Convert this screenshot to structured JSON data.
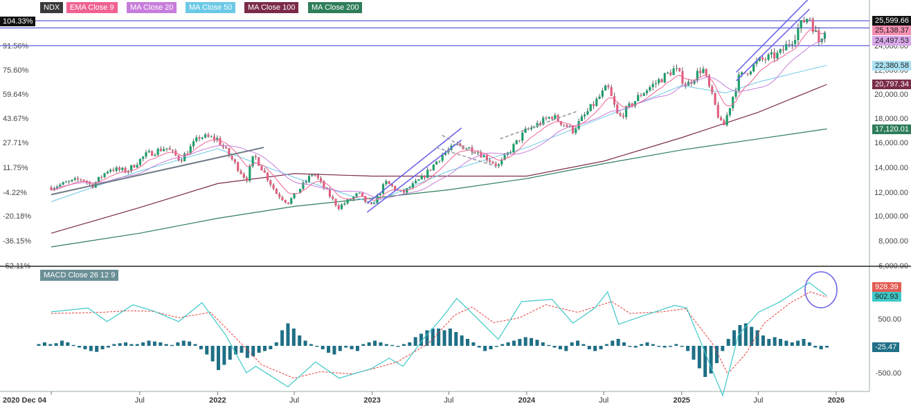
{
  "legend": {
    "ticker": "NDX",
    "ema9": "EMA Close 9",
    "ma20": "MA Close 20",
    "ma50": "MA Close 50",
    "ma100": "MA Close 100",
    "ma200": "MA Close 200",
    "macd": "MACD Close 26 12 9"
  },
  "colors": {
    "up": "#1e9e6a",
    "down": "#e0607e",
    "ema9": "#f06292",
    "ma20": "#c77ddb",
    "ma50": "#6cc9e6",
    "ma100": "#7b2a4a",
    "ma200": "#2e7d5b",
    "macd_line": "#3ec8c8",
    "signal_line": "#e53935",
    "hist": "#1f6f86",
    "trend": "#6c63e8",
    "grid_line": "#5b5bd6"
  },
  "chart_data": [
    {
      "type": "candlestick",
      "title": "NDX",
      "y_right_ticks": [
        "25,599.66",
        "24,000.00",
        "22,000.00",
        "20,000.00",
        "18,000.00",
        "16,000.00",
        "14,000.00",
        "12,000.00",
        "10,000.00",
        "8,000.00",
        "6,000.00"
      ],
      "y_left_pct_ticks": [
        "104.33%",
        "91.56%",
        "75.60%",
        "59.64%",
        "43.67%",
        "27.71%",
        "11.75%",
        "-4.22%",
        "-20.18%",
        "-36.15%",
        "-52.11%"
      ],
      "x_ticks": [
        "2020 Dec 04",
        "Jul",
        "2022",
        "Jul",
        "2023",
        "Jul",
        "2024",
        "Jul",
        "2025",
        "Jul",
        "2026"
      ],
      "price_scale": [
        [
          25599.66,
          30
        ],
        [
          24000,
          66
        ],
        [
          22000,
          101
        ],
        [
          20000,
          136
        ],
        [
          18000,
          171
        ],
        [
          16000,
          206
        ],
        [
          14000,
          242
        ],
        [
          12000,
          278
        ],
        [
          10000,
          312
        ],
        [
          8000,
          348
        ],
        [
          6000,
          384
        ]
      ],
      "x_dates": [
        "2020-12-04",
        "2021-07-01",
        "2022-01-01",
        "2022-07-01",
        "2023-01-01",
        "2023-07-01",
        "2024-01-01",
        "2024-07-01",
        "2025-01-01",
        "2025-07-01",
        "2026-01-01"
      ],
      "price_path": [
        [
          "2020-12-04",
          12400
        ],
        [
          "2021-02-15",
          13100
        ],
        [
          "2021-03-10",
          12500
        ],
        [
          "2021-04-20",
          13900
        ],
        [
          "2021-06-01",
          13700
        ],
        [
          "2021-07-15",
          15000
        ],
        [
          "2021-09-01",
          15600
        ],
        [
          "2021-10-05",
          14600
        ],
        [
          "2021-11-20",
          16500
        ],
        [
          "2021-12-31",
          16300
        ],
        [
          "2022-03-10",
          13000
        ],
        [
          "2022-03-28",
          15000
        ],
        [
          "2022-05-20",
          11900
        ],
        [
          "2022-06-16",
          11100
        ],
        [
          "2022-08-15",
          13600
        ],
        [
          "2022-10-13",
          10700
        ],
        [
          "2022-11-30",
          11900
        ],
        [
          "2022-12-28",
          10700
        ],
        [
          "2023-02-02",
          12800
        ],
        [
          "2023-03-13",
          11900
        ],
        [
          "2023-05-01",
          13200
        ],
        [
          "2023-06-15",
          15000
        ],
        [
          "2023-07-20",
          15800
        ],
        [
          "2023-09-01",
          15400
        ],
        [
          "2023-10-26",
          14100
        ],
        [
          "2023-12-28",
          16900
        ],
        [
          "2024-03-01",
          18200
        ],
        [
          "2024-04-19",
          17000
        ],
        [
          "2024-07-10",
          20600
        ],
        [
          "2024-08-05",
          18000
        ],
        [
          "2024-09-30",
          20100
        ],
        [
          "2024-12-16",
          22100
        ],
        [
          "2025-01-13",
          20700
        ],
        [
          "2025-02-19",
          22200
        ],
        [
          "2025-04-08",
          17100
        ],
        [
          "2025-05-15",
          21300
        ],
        [
          "2025-07-01",
          22700
        ],
        [
          "2025-08-20",
          23300
        ],
        [
          "2025-10-29",
          26100
        ],
        [
          "2025-11-20",
          24200
        ],
        [
          "2025-12-10",
          25600
        ]
      ],
      "ema9_last": "25,138.37",
      "ma20_last": "24,497.53",
      "ma50_last": "22,380.58",
      "ma100_last": "20,797.34",
      "ma200_last": "17,120.01",
      "last_close": "25,599.66",
      "ma50_path": [
        [
          "2020-12-04",
          11200
        ],
        [
          "2021-07-01",
          13700
        ],
        [
          "2022-01-01",
          15500
        ],
        [
          "2022-07-01",
          13200
        ],
        [
          "2023-01-01",
          11100
        ],
        [
          "2023-07-01",
          13700
        ],
        [
          "2024-01-01",
          15600
        ],
        [
          "2024-07-01",
          18100
        ],
        [
          "2025-01-01",
          20700
        ],
        [
          "2025-04-15",
          20100
        ],
        [
          "2025-07-01",
          21000
        ],
        [
          "2025-12-10",
          22380
        ]
      ],
      "ma100_path": [
        [
          "2020-12-04",
          8600
        ],
        [
          "2021-07-01",
          10700
        ],
        [
          "2022-01-01",
          12700
        ],
        [
          "2022-07-01",
          13500
        ],
        [
          "2023-01-01",
          13300
        ],
        [
          "2023-07-01",
          13300
        ],
        [
          "2024-01-01",
          13300
        ],
        [
          "2024-07-01",
          14500
        ],
        [
          "2025-01-01",
          16400
        ],
        [
          "2025-07-01",
          18500
        ],
        [
          "2025-12-10",
          20800
        ]
      ],
      "ma200_path": [
        [
          "2020-12-04",
          7500
        ],
        [
          "2021-07-01",
          8600
        ],
        [
          "2022-01-01",
          9800
        ],
        [
          "2022-07-01",
          10800
        ],
        [
          "2023-01-01",
          11500
        ],
        [
          "2023-07-01",
          12200
        ],
        [
          "2024-01-01",
          13100
        ],
        [
          "2024-07-01",
          14300
        ],
        [
          "2025-01-01",
          15400
        ],
        [
          "2025-07-01",
          16300
        ],
        [
          "2025-12-10",
          17120
        ]
      ],
      "horizontal_levels": [
        25599.66,
        25138.37,
        24000
      ]
    },
    {
      "type": "macd",
      "title": "MACD Close 26 12 9",
      "y_right_ticks": [
        "500.00",
        "-500.00"
      ],
      "macd_value": "928.39",
      "signal_value": "902.93",
      "hist_value": "-25.47",
      "value_scale": [
        [
          500,
          461
        ],
        [
          -500,
          539
        ]
      ],
      "macd_path": [
        [
          "2020-12-04",
          630
        ],
        [
          "2021-03-01",
          700
        ],
        [
          "2021-04-15",
          450
        ],
        [
          "2021-06-15",
          760
        ],
        [
          "2021-08-01",
          650
        ],
        [
          "2021-10-01",
          450
        ],
        [
          "2021-11-25",
          800
        ],
        [
          "2022-01-20",
          200
        ],
        [
          "2022-03-10",
          -500
        ],
        [
          "2022-04-01",
          -380
        ],
        [
          "2022-06-16",
          -760
        ],
        [
          "2022-08-20",
          -300
        ],
        [
          "2022-10-15",
          -600
        ],
        [
          "2022-12-31",
          -420
        ],
        [
          "2023-02-10",
          -230
        ],
        [
          "2023-03-15",
          -380
        ],
        [
          "2023-05-01",
          120
        ],
        [
          "2023-06-15",
          520
        ],
        [
          "2023-07-20",
          880
        ],
        [
          "2023-09-01",
          550
        ],
        [
          "2023-10-26",
          120
        ],
        [
          "2023-12-20",
          820
        ],
        [
          "2024-03-01",
          860
        ],
        [
          "2024-04-19",
          420
        ],
        [
          "2024-06-10",
          700
        ],
        [
          "2024-07-10",
          1000
        ],
        [
          "2024-08-05",
          400
        ],
        [
          "2024-09-30",
          550
        ],
        [
          "2024-12-16",
          750
        ],
        [
          "2025-01-13",
          700
        ],
        [
          "2025-04-08",
          -920
        ],
        [
          "2025-05-15",
          200
        ],
        [
          "2025-07-01",
          620
        ],
        [
          "2025-08-20",
          810
        ],
        [
          "2025-10-29",
          1170
        ],
        [
          "2025-12-10",
          928
        ]
      ],
      "signal_path": [
        [
          "2020-12-04",
          600
        ],
        [
          "2021-04-01",
          620
        ],
        [
          "2021-06-01",
          650
        ],
        [
          "2021-08-01",
          640
        ],
        [
          "2021-10-01",
          520
        ],
        [
          "2021-12-15",
          620
        ],
        [
          "2022-02-15",
          130
        ],
        [
          "2022-04-15",
          -350
        ],
        [
          "2022-06-30",
          -600
        ],
        [
          "2022-09-01",
          -480
        ],
        [
          "2022-11-15",
          -520
        ],
        [
          "2023-01-15",
          -400
        ],
        [
          "2023-03-01",
          -300
        ],
        [
          "2023-05-15",
          50
        ],
        [
          "2023-07-15",
          570
        ],
        [
          "2023-08-25",
          720
        ],
        [
          "2023-10-15",
          430
        ],
        [
          "2023-12-15",
          520
        ],
        [
          "2024-02-15",
          760
        ],
        [
          "2024-05-01",
          620
        ],
        [
          "2024-07-20",
          820
        ],
        [
          "2024-09-01",
          600
        ],
        [
          "2024-11-15",
          630
        ],
        [
          "2025-01-10",
          690
        ],
        [
          "2025-03-15",
          40
        ],
        [
          "2025-04-20",
          -520
        ],
        [
          "2025-06-01",
          -150
        ],
        [
          "2025-07-15",
          420
        ],
        [
          "2025-09-15",
          800
        ],
        [
          "2025-11-01",
          1000
        ],
        [
          "2025-12-10",
          903
        ]
      ],
      "hist_bars": [
        0.1,
        0.2,
        0.1,
        0.15,
        0.3,
        0.2,
        0.05,
        -0.1,
        -0.2,
        -0.3,
        -0.35,
        -0.2,
        -0.1,
        0.1,
        0.15,
        0.2,
        0.1,
        0.1,
        0.2,
        0.3,
        0.25,
        0.2,
        0.1,
        0.05,
        0.2,
        0.3,
        0.25,
        0.1,
        -0.2,
        -0.5,
        -0.9,
        -1.4,
        -1.1,
        -0.8,
        -0.5,
        -0.4,
        -0.7,
        -0.6,
        -0.4,
        -0.3,
        -0.2,
        0.2,
        0.9,
        1.3,
        1.0,
        0.6,
        0.3,
        0.1,
        0.0,
        -0.2,
        -0.4,
        -0.5,
        -0.3,
        -0.1,
        -0.2,
        -0.3,
        0.1,
        0.2,
        0.3,
        0.2,
        0.1,
        0.05,
        0.0,
        0.1,
        0.2,
        0.5,
        0.7,
        0.9,
        1.0,
        1.0,
        0.9,
        1.0,
        0.8,
        0.6,
        0.4,
        0.2,
        -0.1,
        -0.3,
        -0.2,
        0.0,
        0.1,
        0.2,
        0.3,
        0.4,
        0.5,
        0.45,
        0.35,
        0.2,
        0.05,
        -0.1,
        -0.2,
        -0.3,
        0.2,
        0.3,
        0.1,
        -0.2,
        -0.3,
        -0.2,
        0.1,
        0.3,
        0.4,
        0.2,
        0.0,
        -0.1,
        0.1,
        0.2,
        0.1,
        -0.05,
        -0.1,
        0.0,
        0.1,
        0.0,
        -0.3,
        -0.8,
        -1.3,
        -1.8,
        -1.6,
        -1.0,
        -0.3,
        0.4,
        0.9,
        1.2,
        1.3,
        1.1,
        0.9,
        0.6,
        0.4,
        0.5,
        0.4,
        0.3,
        0.2,
        0.3,
        0.4,
        0.2,
        -0.1,
        -0.2,
        -0.1
      ]
    }
  ]
}
